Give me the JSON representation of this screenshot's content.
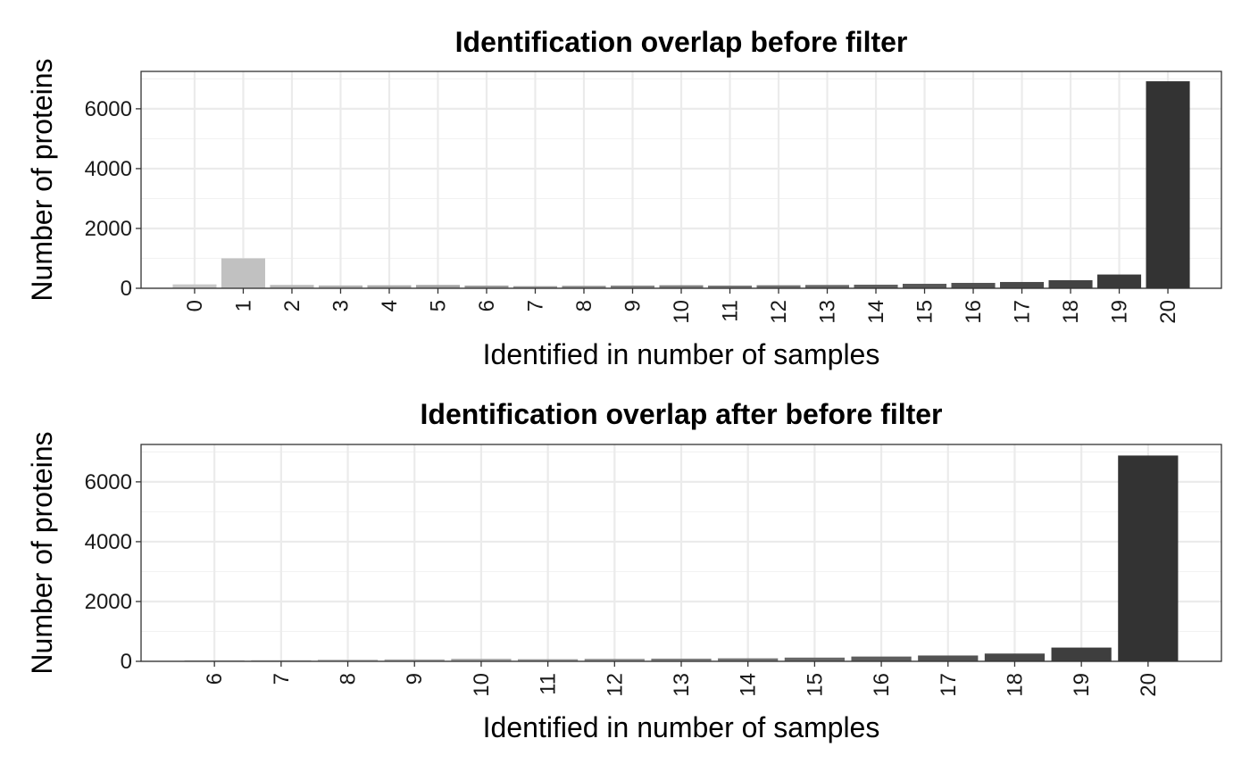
{
  "chart_data": [
    {
      "type": "bar",
      "title": "Identification overlap before filter",
      "xlabel": "Identified in number of samples",
      "ylabel": "Number of proteins",
      "categories": [
        "0",
        "1",
        "2",
        "3",
        "4",
        "5",
        "6",
        "7",
        "8",
        "9",
        "10",
        "11",
        "12",
        "13",
        "14",
        "15",
        "16",
        "17",
        "18",
        "19",
        "20"
      ],
      "values": [
        130,
        1000,
        110,
        95,
        100,
        110,
        90,
        70,
        80,
        90,
        100,
        90,
        100,
        110,
        120,
        150,
        180,
        210,
        270,
        460,
        6920
      ],
      "ylim": [
        0,
        7250
      ],
      "yticks": [
        0,
        2000,
        4000,
        6000
      ],
      "grid": true,
      "legend": "none",
      "bar_color_light": "#c8c8c8",
      "bar_color_dark": "#333333"
    },
    {
      "type": "bar",
      "title": "Identification overlap after before filter",
      "xlabel": "Identified in number of samples",
      "ylabel": "Number of proteins",
      "categories": [
        "6",
        "7",
        "8",
        "9",
        "10",
        "11",
        "12",
        "13",
        "14",
        "15",
        "16",
        "17",
        "18",
        "19",
        "20"
      ],
      "values": [
        40,
        40,
        55,
        65,
        80,
        70,
        80,
        90,
        100,
        125,
        160,
        195,
        260,
        460,
        6880
      ],
      "ylim": [
        0,
        7250
      ],
      "yticks": [
        0,
        2000,
        4000,
        6000
      ],
      "grid": true,
      "legend": "none",
      "bar_color_light": "#c8c8c8",
      "bar_color_dark": "#333333"
    }
  ]
}
